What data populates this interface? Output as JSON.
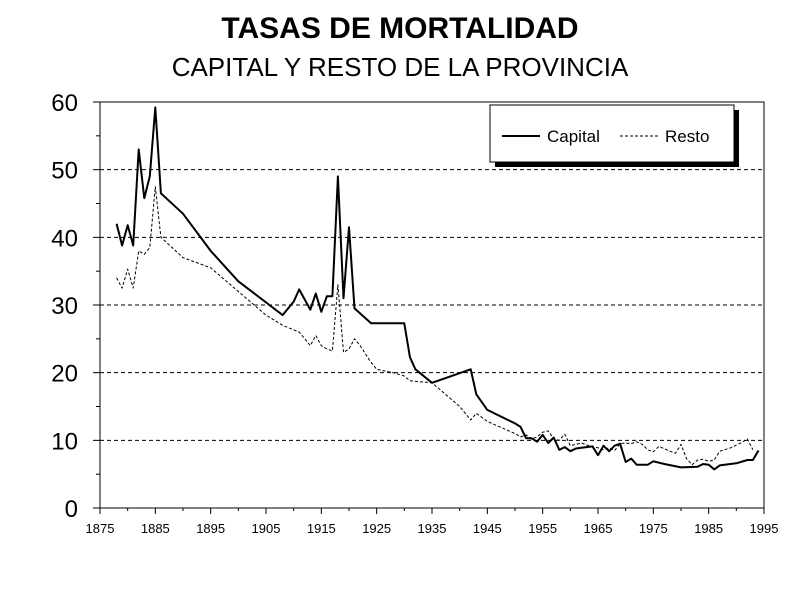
{
  "chart_data": {
    "type": "line",
    "title": "TASAS DE MORTALIDAD",
    "subtitle": "CAPITAL Y RESTO DE LA PROVINCIA",
    "xlabel": "",
    "ylabel": "",
    "xlim": [
      1875,
      1995
    ],
    "ylim": [
      0,
      60
    ],
    "xticks": [
      1875,
      1885,
      1895,
      1905,
      1915,
      1925,
      1935,
      1945,
      1955,
      1965,
      1975,
      1985,
      1995
    ],
    "yticks": [
      0,
      10,
      20,
      30,
      40,
      50,
      60
    ],
    "grid": "horizontal-dashed",
    "legend": "top-right",
    "series": [
      {
        "name": "Capital",
        "style": "solid",
        "color": "#000000",
        "points": [
          [
            1878,
            42
          ],
          [
            1879,
            38.8
          ],
          [
            1880,
            41.8
          ],
          [
            1881,
            38.8
          ],
          [
            1882,
            53
          ],
          [
            1883,
            45.8
          ],
          [
            1884,
            49
          ],
          [
            1885,
            59.2
          ],
          [
            1886,
            46.5
          ],
          [
            1890,
            43.5
          ],
          [
            1895,
            38
          ],
          [
            1900,
            33.5
          ],
          [
            1908,
            28.5
          ],
          [
            1910,
            30.5
          ],
          [
            1911,
            32.3
          ],
          [
            1913,
            29.3
          ],
          [
            1914,
            31.7
          ],
          [
            1915,
            29
          ],
          [
            1916,
            31.3
          ],
          [
            1917,
            31.3
          ],
          [
            1918,
            49
          ],
          [
            1919,
            31
          ],
          [
            1920,
            41.5
          ],
          [
            1921,
            29.5
          ],
          [
            1924,
            27.3
          ],
          [
            1929,
            27.3
          ],
          [
            1930,
            27.3
          ],
          [
            1931,
            22.3
          ],
          [
            1932,
            20.5
          ],
          [
            1935,
            18.5
          ],
          [
            1942,
            20.5
          ],
          [
            1943,
            16.8
          ],
          [
            1945,
            14.5
          ],
          [
            1950,
            12.5
          ],
          [
            1951,
            12
          ],
          [
            1952,
            10.3
          ],
          [
            1953,
            10.3
          ],
          [
            1954,
            9.8
          ],
          [
            1955,
            10.8
          ],
          [
            1956,
            9.6
          ],
          [
            1957,
            10.4
          ],
          [
            1958,
            8.6
          ],
          [
            1959,
            9
          ],
          [
            1960,
            8.4
          ],
          [
            1961,
            8.8
          ],
          [
            1962,
            8.9
          ],
          [
            1964,
            9.1
          ],
          [
            1965,
            7.8
          ],
          [
            1966,
            9.2
          ],
          [
            1967,
            8.4
          ],
          [
            1968,
            9.2
          ],
          [
            1969,
            9.5
          ],
          [
            1970,
            6.8
          ],
          [
            1971,
            7.3
          ],
          [
            1972,
            6.4
          ],
          [
            1974,
            6.4
          ],
          [
            1975,
            6.9
          ],
          [
            1977,
            6.5
          ],
          [
            1980,
            6
          ],
          [
            1983,
            6.1
          ],
          [
            1984,
            6.5
          ],
          [
            1985,
            6.4
          ],
          [
            1986,
            5.7
          ],
          [
            1987,
            6.3
          ],
          [
            1990,
            6.6
          ],
          [
            1992,
            7.1
          ],
          [
            1993,
            7.1
          ],
          [
            1994,
            8.5
          ]
        ]
      },
      {
        "name": "Resto",
        "style": "dashed",
        "color": "#000000",
        "points": [
          [
            1878,
            34
          ],
          [
            1879,
            32.5
          ],
          [
            1880,
            35.3
          ],
          [
            1881,
            32.5
          ],
          [
            1882,
            38
          ],
          [
            1883,
            37.5
          ],
          [
            1884,
            38.5
          ],
          [
            1885,
            47.5
          ],
          [
            1886,
            40
          ],
          [
            1890,
            37
          ],
          [
            1895,
            35.5
          ],
          [
            1900,
            32
          ],
          [
            1905,
            28.5
          ],
          [
            1908,
            27
          ],
          [
            1911,
            26
          ],
          [
            1913,
            24
          ],
          [
            1914,
            25.5
          ],
          [
            1915,
            24
          ],
          [
            1916,
            23.5
          ],
          [
            1917,
            23.2
          ],
          [
            1918,
            33
          ],
          [
            1919,
            23
          ],
          [
            1920,
            23.5
          ],
          [
            1921,
            25
          ],
          [
            1922,
            24
          ],
          [
            1924,
            21.5
          ],
          [
            1925,
            20.5
          ],
          [
            1928,
            20
          ],
          [
            1930,
            19.5
          ],
          [
            1931,
            18.8
          ],
          [
            1935,
            18.5
          ],
          [
            1940,
            15
          ],
          [
            1942,
            13
          ],
          [
            1943,
            14
          ],
          [
            1945,
            12.8
          ],
          [
            1950,
            11
          ],
          [
            1951,
            10.5
          ],
          [
            1952,
            10.8
          ],
          [
            1953,
            10.2
          ],
          [
            1954,
            10.5
          ],
          [
            1955,
            11.2
          ],
          [
            1956,
            11.4
          ],
          [
            1957,
            10.2
          ],
          [
            1958,
            10
          ],
          [
            1959,
            10.9
          ],
          [
            1960,
            9.2
          ],
          [
            1962,
            9.6
          ],
          [
            1964,
            9
          ],
          [
            1965,
            8.9
          ],
          [
            1966,
            8.6
          ],
          [
            1967,
            8.9
          ],
          [
            1968,
            8.5
          ],
          [
            1969,
            9.5
          ],
          [
            1970,
            9.6
          ],
          [
            1971,
            9.5
          ],
          [
            1972,
            9.8
          ],
          [
            1973,
            9.4
          ],
          [
            1974,
            8.6
          ],
          [
            1975,
            8.3
          ],
          [
            1976,
            9.1
          ],
          [
            1978,
            8.4
          ],
          [
            1979,
            8.1
          ],
          [
            1980,
            9.4
          ],
          [
            1981,
            7.3
          ],
          [
            1982,
            6.4
          ],
          [
            1983,
            7.1
          ],
          [
            1984,
            7.2
          ],
          [
            1985,
            6.9
          ],
          [
            1986,
            7.1
          ],
          [
            1987,
            8.4
          ],
          [
            1989,
            8.9
          ],
          [
            1991,
            9.7
          ],
          [
            1992,
            10.2
          ],
          [
            1993,
            8.6
          ]
        ]
      }
    ]
  }
}
